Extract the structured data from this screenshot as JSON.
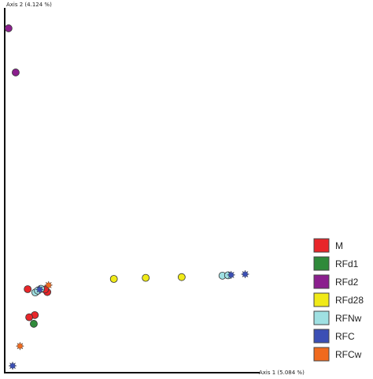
{
  "chart_data": {
    "type": "scatter",
    "xlabel": "Axis 1 (5.084 %)",
    "ylabel": "Axis 2 (4.124 %)",
    "xlim": [
      0,
      1
    ],
    "ylim": [
      0,
      1
    ],
    "grid": false,
    "legend_position": "right",
    "series": [
      {
        "name": "M",
        "color": "#e8262a",
        "marker": "circle",
        "points": [
          [
            0.09,
            0.229
          ],
          [
            0.118,
            0.158
          ],
          [
            0.096,
            0.152
          ],
          [
            0.167,
            0.221
          ],
          [
            0.158,
            0.228
          ]
        ]
      },
      {
        "name": "RFd1",
        "color": "#2f8a3a",
        "marker": "circle",
        "points": [
          [
            0.114,
            0.134
          ]
        ]
      },
      {
        "name": "RFd2",
        "color": "#8b1f8e",
        "marker": "circle",
        "points": [
          [
            0.015,
            0.944
          ],
          [
            0.043,
            0.823
          ]
        ]
      },
      {
        "name": "RFd28",
        "color": "#f0ea18",
        "marker": "circle",
        "points": [
          [
            0.428,
            0.257
          ],
          [
            0.553,
            0.26
          ],
          [
            0.694,
            0.262
          ]
        ]
      },
      {
        "name": "RFNw",
        "color": "#9fe0e2",
        "marker": "circle",
        "points": [
          [
            0.854,
            0.266
          ],
          [
            0.876,
            0.267
          ],
          [
            0.12,
            0.22
          ],
          [
            0.142,
            0.23
          ],
          [
            0.13,
            0.225
          ]
        ]
      },
      {
        "name": "RFC",
        "color": "#3b4fb5",
        "marker": "star",
        "points": [
          [
            0.031,
            0.019
          ],
          [
            0.943,
            0.27
          ],
          [
            0.888,
            0.268
          ],
          [
            0.137,
            0.228
          ]
        ]
      },
      {
        "name": "RFCw",
        "color": "#f06a1e",
        "marker": "star",
        "points": [
          [
            0.06,
            0.073
          ],
          [
            0.172,
            0.24
          ]
        ]
      }
    ]
  }
}
